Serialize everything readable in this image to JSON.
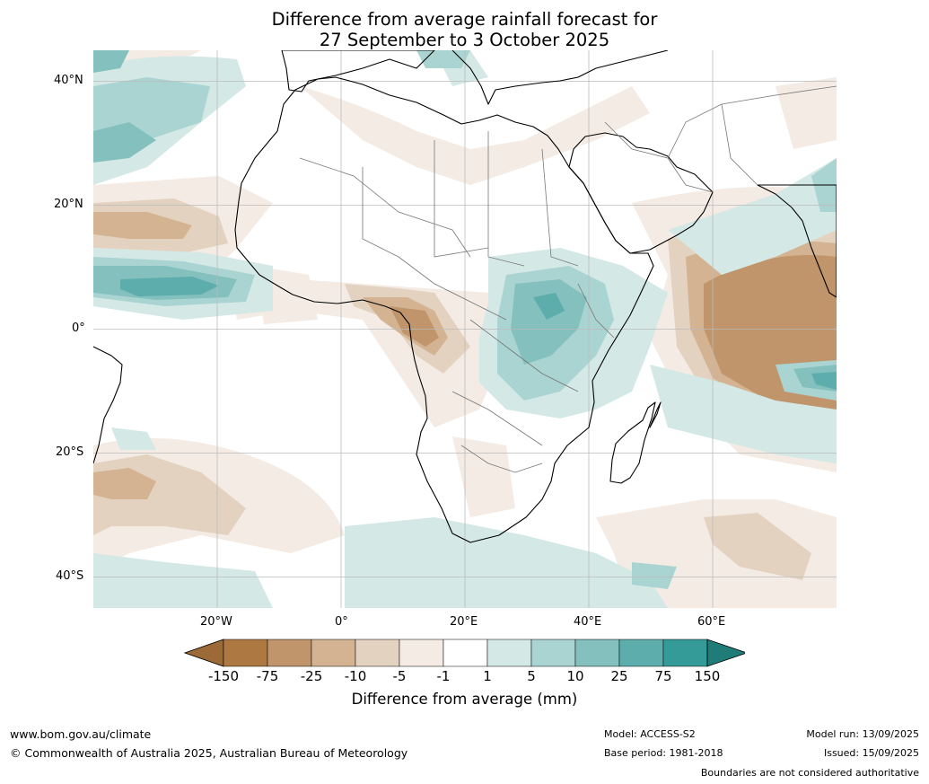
{
  "title_line1": "Difference from average rainfall forecast for",
  "title_line2": "27 September to 3 October 2025",
  "lat_labels": [
    "40°N",
    "20°N",
    "0°",
    "20°S",
    "40°S"
  ],
  "lon_labels": [
    "20°W",
    "0°",
    "20°E",
    "40°E",
    "60°E"
  ],
  "colorbar": {
    "ticks": [
      "-150",
      "-75",
      "-25",
      "-10",
      "-5",
      "-1",
      "1",
      "5",
      "10",
      "25",
      "75",
      "150"
    ],
    "colors": [
      "#9c6a36",
      "#ad7842",
      "#c0956b",
      "#d4b392",
      "#e4d2c0",
      "#f3ebe4",
      "#ffffff",
      "#d4e8e6",
      "#aad4d2",
      "#83c0be",
      "#5cadab",
      "#349b98",
      "#1f7c79"
    ],
    "title": "Difference from average (mm)"
  },
  "footer": {
    "website": "www.bom.gov.au/climate",
    "copyright": "© Commonwealth of Australia 2025, Australian Bureau of Meteorology",
    "model": "Model: ACCESS-S2",
    "base_period": "Base period: 1981-2018",
    "model_run": "Model run: 13/09/2025",
    "issued": "Issued: 15/09/2025",
    "disclaimer": "Boundaries are not considered authoritative"
  }
}
